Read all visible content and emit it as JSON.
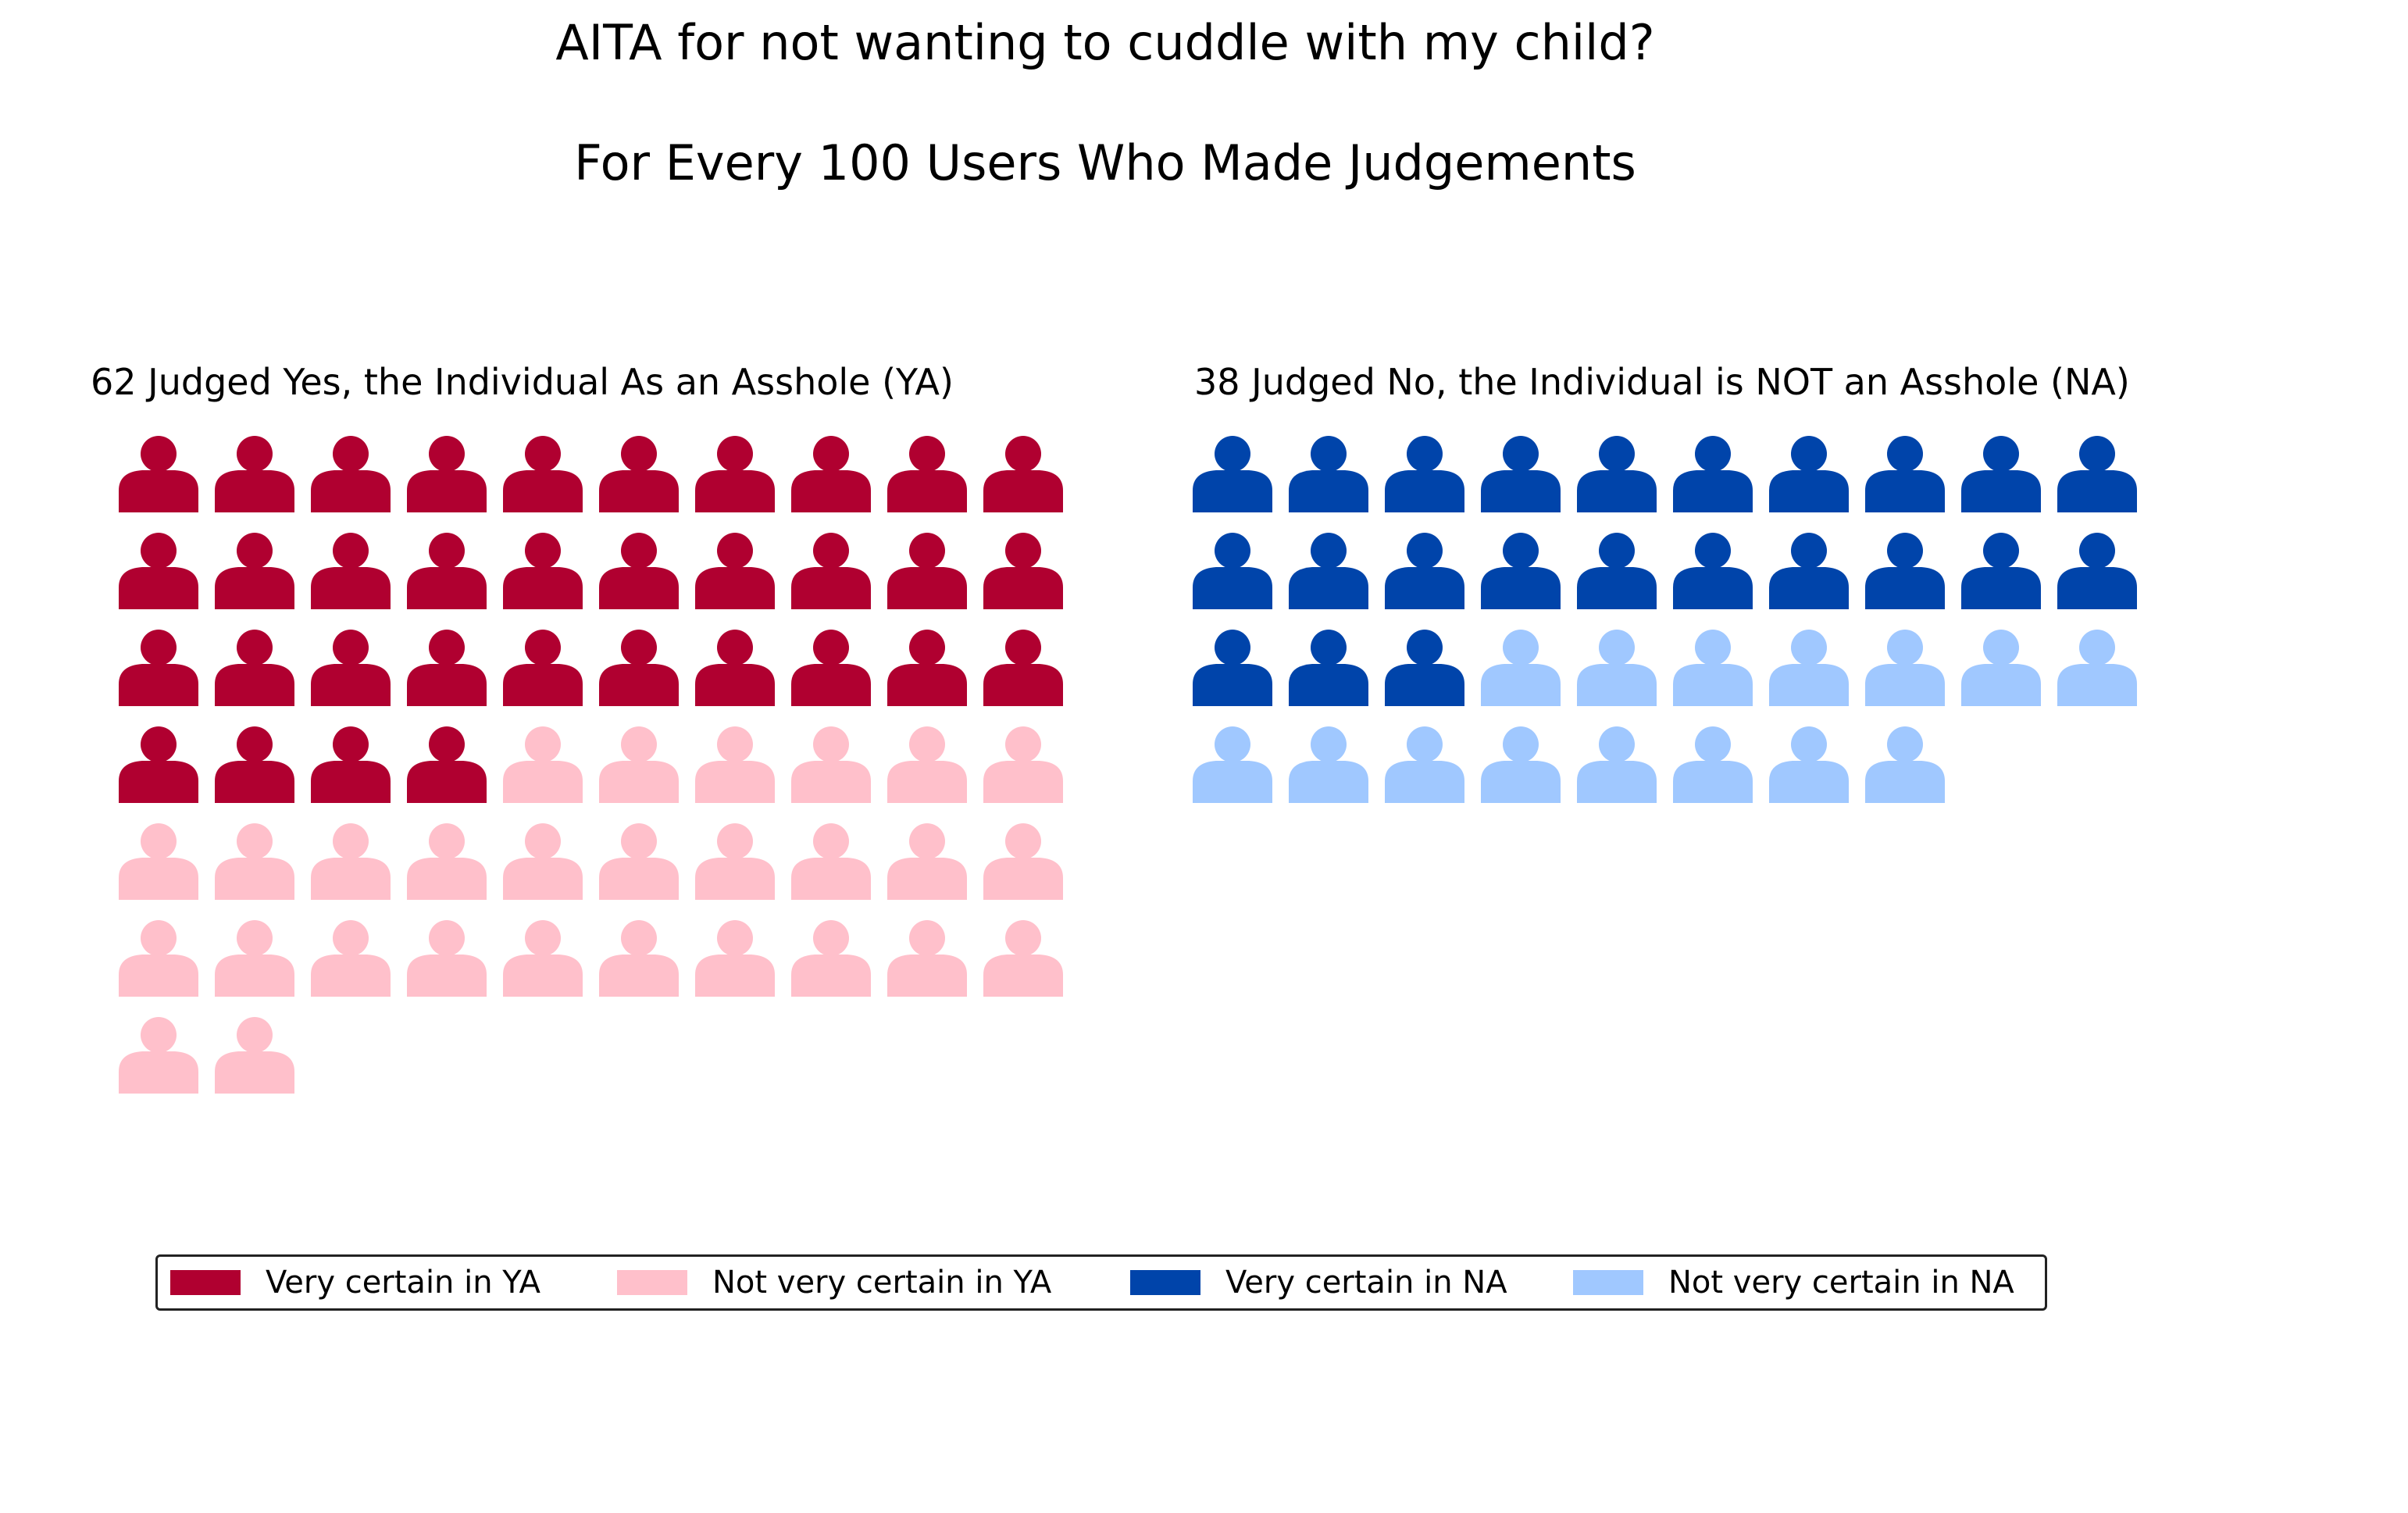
{
  "chart_data": {
    "type": "waffle",
    "title": "AITA for not wanting to cuddle with my child?",
    "subtitle": "For Every 100 Users Who Made Judgements",
    "panels": [
      {
        "title": "62 Judged Yes, the Individual As an Asshole (YA)",
        "total": 62,
        "segments": [
          {
            "name": "Very certain in YA",
            "value": 34,
            "color": "#b00030"
          },
          {
            "name": "Not very certain in YA",
            "value": 28,
            "color": "#ffc0cb"
          }
        ]
      },
      {
        "title": "38 Judged No, the Individual is NOT an Asshole (NA)",
        "total": 38,
        "segments": [
          {
            "name": "Very certain in NA",
            "value": 23,
            "color": "#0044aa"
          },
          {
            "name": "Not very certain in NA",
            "value": 15,
            "color": "#a0c8ff"
          }
        ]
      }
    ],
    "icon": "person-icon",
    "columns": 10,
    "legend": {
      "placement": "bottom",
      "entries": [
        {
          "label": "Very certain in YA",
          "color": "#b00030"
        },
        {
          "label": "Not very certain in YA",
          "color": "#ffc0cb"
        },
        {
          "label": "Very certain in NA",
          "color": "#0044aa"
        },
        {
          "label": "Not very certain in NA",
          "color": "#a0c8ff"
        }
      ]
    }
  }
}
